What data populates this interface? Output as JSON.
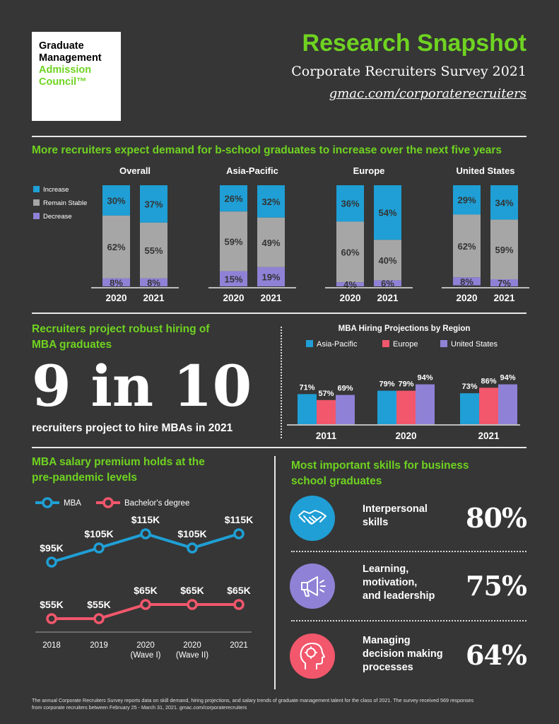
{
  "logo": {
    "line1": "Graduate",
    "line2": "Management",
    "line3": "Admission",
    "line4": "Council™"
  },
  "header": {
    "title": "Research Snapshot",
    "subtitle": "Corporate Recruiters Survey 2021",
    "url": "gmac.com/corporaterecruiters"
  },
  "colors": {
    "green": "#6fd321",
    "increase": "#1f9fd5",
    "stable": "#a6a6a6",
    "decrease": "#8f82d6",
    "asia": "#1f9fd5",
    "europe": "#f2576c",
    "us": "#8f82d6",
    "mba": "#1f9fd5",
    "bachelor": "#f2576c"
  },
  "section1": {
    "title": "More recruiters expect demand for b-school graduates to increase over the next five years"
  },
  "section2": {
    "title_line1": "Recruiters project robust hiring of",
    "title_line2": "MBA graduates",
    "big": "9 in 10",
    "caption": "recruiters project to hire MBAs in 2021"
  },
  "section3": {
    "title_line1": "MBA salary premium holds at the",
    "title_line2": "pre-pandemic levels"
  },
  "section4": {
    "title_line1": "Most important skills for business",
    "title_line2": "school graduates",
    "skills": [
      {
        "icon": "handshake-icon",
        "label_lines": [
          "Interpersonal",
          "skills"
        ],
        "pct": "80%"
      },
      {
        "icon": "megaphone-icon",
        "label_lines": [
          "Learning,",
          "motivation,",
          "and leadership"
        ],
        "pct": "75%"
      },
      {
        "icon": "head-brain-icon",
        "label_lines": [
          "Managing",
          "decision making",
          "processes"
        ],
        "pct": "64%"
      }
    ]
  },
  "footer": {
    "line1": "The annual Corporate Recruiters Survey reports data on skill demand, hiring projections, and salary trends of graduate management talent for the class of 2021. The survey received 569 responses",
    "line2": "from corporate recruiters between February 25 - March 31, 2021. gmac.com/corporaterecruiters"
  },
  "chart_data": [
    {
      "type": "bar",
      "stacked": true,
      "legend": [
        "Increase",
        "Remain Stable",
        "Decrease"
      ],
      "legend_position": "left",
      "groups": [
        {
          "name": "Overall",
          "categories": [
            "2020",
            "2021"
          ],
          "series": [
            {
              "name": "Increase",
              "values": [
                30,
                37
              ]
            },
            {
              "name": "Remain Stable",
              "values": [
                62,
                55
              ]
            },
            {
              "name": "Decrease",
              "values": [
                8,
                8
              ]
            }
          ]
        },
        {
          "name": "Asia-Pacific",
          "categories": [
            "2020",
            "2021"
          ],
          "series": [
            {
              "name": "Increase",
              "values": [
                26,
                32
              ]
            },
            {
              "name": "Remain Stable",
              "values": [
                59,
                49
              ]
            },
            {
              "name": "Decrease",
              "values": [
                15,
                19
              ]
            }
          ]
        },
        {
          "name": "Europe",
          "categories": [
            "2020",
            "2021"
          ],
          "series": [
            {
              "name": "Increase",
              "values": [
                36,
                54
              ]
            },
            {
              "name": "Remain Stable",
              "values": [
                60,
                40
              ]
            },
            {
              "name": "Decrease",
              "values": [
                4,
                6
              ]
            }
          ]
        },
        {
          "name": "United States",
          "categories": [
            "2020",
            "2021"
          ],
          "series": [
            {
              "name": "Increase",
              "values": [
                29,
                34
              ]
            },
            {
              "name": "Remain Stable",
              "values": [
                62,
                59
              ]
            },
            {
              "name": "Decrease",
              "values": [
                8,
                7
              ]
            }
          ]
        }
      ]
    },
    {
      "type": "bar",
      "title": "MBA Hiring Projections by Region",
      "legend_position": "top",
      "categories": [
        "2011",
        "2020",
        "2021"
      ],
      "series": [
        {
          "name": "Asia-Pacific",
          "values": [
            71,
            79,
            73
          ]
        },
        {
          "name": "Europe",
          "values": [
            57,
            79,
            86
          ]
        },
        {
          "name": "United States",
          "values": [
            69,
            94,
            94
          ]
        }
      ]
    },
    {
      "type": "line",
      "legend_position": "top-left",
      "x": [
        "2018",
        "2019",
        "2020 (Wave I)",
        "2020 (Wave II)",
        "2021"
      ],
      "x_lines": [
        [
          "2018"
        ],
        [
          "2019"
        ],
        [
          "2020",
          "(Wave I)"
        ],
        [
          "2020",
          "(Wave II)"
        ],
        [
          "2021"
        ]
      ],
      "series": [
        {
          "name": "MBA",
          "values": [
            95,
            105,
            115,
            105,
            115
          ],
          "labels": [
            "$95K",
            "$105K",
            "$115K",
            "$105K",
            "$115K"
          ]
        },
        {
          "name": "Bachelor's degree",
          "values": [
            55,
            55,
            65,
            65,
            65
          ],
          "labels": [
            "$55K",
            "$55K",
            "$65K",
            "$65K",
            "$65K"
          ]
        }
      ]
    }
  ]
}
